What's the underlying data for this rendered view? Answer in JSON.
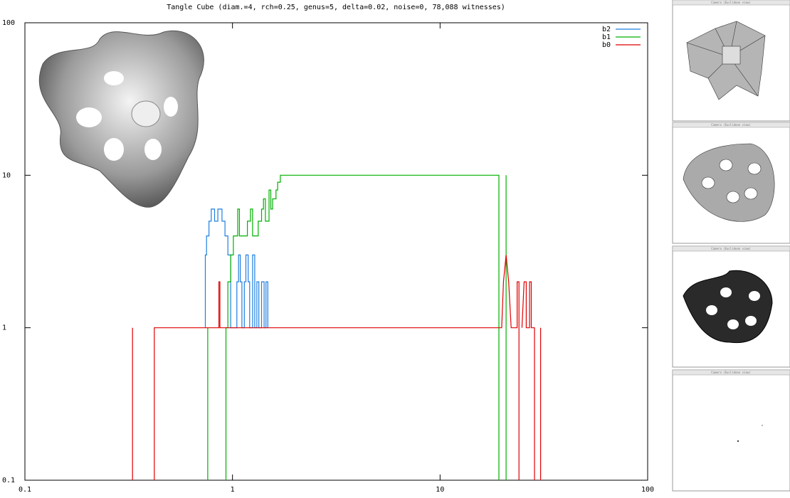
{
  "chart_data": {
    "type": "line",
    "title": "Tangle Cube (diam.=4, rch=0.25, genus=5, delta=0.02, noise=0, 78,088 witnesses)",
    "log_x": true,
    "log_y": true,
    "legend": "top-right",
    "xlim": [
      0.1,
      100
    ],
    "ylim": [
      0.1,
      100
    ],
    "xticks": [
      0.1,
      1,
      10,
      100
    ],
    "yticks": [
      0.1,
      1,
      10,
      100
    ],
    "series": [
      {
        "name": "b2",
        "color": "#1f7fe0",
        "x": [
          0.74,
          0.74,
          0.75,
          0.75,
          0.77,
          0.77,
          0.79,
          0.79,
          0.82,
          0.82,
          0.85,
          0.85,
          0.89,
          0.89,
          0.92,
          0.92,
          0.95,
          0.95,
          0.98,
          0.98,
          1.05,
          1.05,
          1.07,
          1.07,
          1.09,
          1.09,
          1.11,
          1.11,
          1.14,
          1.14,
          1.16,
          1.16,
          1.19,
          1.19,
          1.21,
          1.21,
          1.25,
          1.25,
          1.28,
          1.28,
          1.31,
          1.31,
          1.34,
          1.34,
          1.38,
          1.38,
          1.42,
          1.42,
          1.45,
          1.45,
          1.48,
          1.48
        ],
        "values": [
          1,
          3,
          3,
          4,
          4,
          5,
          5,
          6,
          6,
          5,
          5,
          6,
          6,
          5,
          5,
          4,
          4,
          3,
          3,
          1,
          1,
          2,
          2,
          3,
          3,
          2,
          2,
          1,
          1,
          2,
          2,
          3,
          3,
          2,
          2,
          1,
          1,
          3,
          3,
          1,
          1,
          2,
          2,
          1,
          1,
          2,
          2,
          1,
          1,
          2,
          2,
          1
        ]
      },
      {
        "name": "b1",
        "color": "#00b000",
        "x": [
          0.76,
          0.76,
          null,
          0.93,
          0.93,
          0.95,
          0.95,
          0.98,
          0.98,
          1.01,
          1.01,
          1.06,
          1.06,
          1.08,
          1.08,
          1.18,
          1.18,
          1.22,
          1.22,
          1.25,
          1.25,
          1.33,
          1.33,
          1.38,
          1.38,
          1.41,
          1.41,
          1.44,
          1.44,
          1.5,
          1.5,
          1.53,
          1.53,
          1.56,
          1.56,
          1.62,
          1.62,
          1.65,
          1.65,
          1.7,
          1.7,
          19.2,
          19.2,
          null,
          20.8,
          20.8
        ],
        "values": [
          0.1,
          1,
          null,
          0.1,
          1,
          1,
          2,
          2,
          3,
          3,
          4,
          4,
          6,
          6,
          4,
          4,
          5,
          5,
          6,
          6,
          4,
          4,
          5,
          5,
          6,
          6,
          7,
          7,
          5,
          5,
          8,
          8,
          6,
          6,
          7,
          7,
          8,
          8,
          9,
          9,
          10,
          10,
          0.1,
          null,
          10,
          0.1
        ]
      },
      {
        "name": "b0",
        "color": "#e00000",
        "x": [
          0.33,
          0.33,
          null,
          0.42,
          0.42,
          0.86,
          0.86,
          0.87,
          0.87,
          19.8,
          20.2,
          20.8,
          21.4,
          22.0,
          23.5,
          23.5,
          24.0,
          24.0,
          null,
          24.8,
          25.4,
          26.0,
          26.0,
          27.0,
          27.0,
          27.5,
          27.5,
          28.5,
          28.5,
          null,
          30.5,
          30.5
        ],
        "values": [
          0.1,
          1,
          null,
          0.1,
          1,
          1,
          2,
          2,
          1,
          1,
          2,
          3,
          2,
          1,
          1,
          2,
          2,
          0.1,
          null,
          1,
          2,
          2,
          1,
          1,
          2,
          2,
          1,
          1,
          0.1,
          null,
          0.1,
          1
        ]
      }
    ]
  },
  "side_panels": [
    {
      "title": "Camera (Euclidean view)"
    },
    {
      "title": "Camera (Euclidean view)"
    },
    {
      "title": "Camera (Euclidean view)"
    },
    {
      "title": "Camera (Euclidean view)"
    }
  ]
}
